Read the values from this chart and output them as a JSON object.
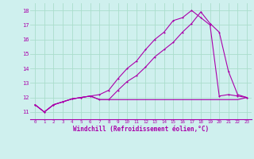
{
  "background_color": "#cff0ee",
  "grid_color": "#aaddcc",
  "line_color": "#aa00aa",
  "xlabel": "Windchill (Refroidissement éolien,°C)",
  "xlim": [
    -0.5,
    23.5
  ],
  "ylim": [
    10.5,
    18.5
  ],
  "yticks": [
    11,
    12,
    13,
    14,
    15,
    16,
    17,
    18
  ],
  "xticks": [
    0,
    1,
    2,
    3,
    4,
    5,
    6,
    7,
    8,
    9,
    10,
    11,
    12,
    13,
    14,
    15,
    16,
    17,
    18,
    19,
    20,
    21,
    22,
    23
  ],
  "line1_x": [
    0,
    1,
    2,
    3,
    4,
    5,
    6,
    7,
    8,
    9,
    10,
    11,
    12,
    13,
    14,
    15,
    16,
    17,
    18,
    19,
    20,
    21,
    22,
    23
  ],
  "line1_y": [
    11.5,
    11.0,
    11.5,
    11.7,
    11.9,
    12.0,
    12.1,
    11.85,
    11.85,
    11.85,
    11.85,
    11.85,
    11.85,
    11.85,
    11.85,
    11.85,
    11.85,
    11.85,
    11.85,
    11.85,
    11.85,
    11.85,
    11.85,
    12.0
  ],
  "line2_x": [
    0,
    1,
    2,
    3,
    4,
    5,
    6,
    7,
    8,
    9,
    10,
    11,
    12,
    13,
    14,
    15,
    16,
    17,
    18,
    19,
    20,
    21,
    22,
    23
  ],
  "line2_y": [
    11.5,
    11.0,
    11.5,
    11.7,
    11.9,
    12.0,
    12.1,
    11.85,
    11.85,
    12.5,
    13.1,
    13.5,
    14.1,
    14.8,
    15.3,
    15.8,
    16.5,
    17.1,
    17.9,
    17.1,
    16.5,
    13.8,
    12.2,
    12.0
  ],
  "line3_x": [
    0,
    1,
    2,
    3,
    4,
    5,
    6,
    7,
    8,
    9,
    10,
    11,
    12,
    13,
    14,
    15,
    16,
    17,
    18,
    19,
    20,
    21,
    22,
    23
  ],
  "line3_y": [
    11.5,
    11.0,
    11.5,
    11.7,
    11.9,
    12.0,
    12.1,
    12.2,
    12.5,
    13.3,
    14.0,
    14.5,
    15.3,
    16.0,
    16.5,
    17.3,
    17.5,
    18.0,
    17.5,
    17.0,
    12.1,
    12.2,
    12.1,
    12.0
  ]
}
